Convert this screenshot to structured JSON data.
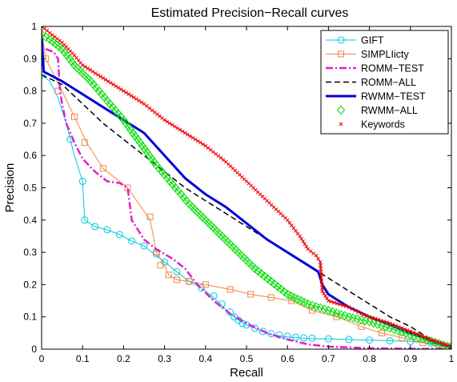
{
  "chart_data": {
    "type": "line",
    "title": "Estimated Precision−Recall curves",
    "xlabel": "Recall",
    "ylabel": "Precision",
    "xlim": [
      0,
      1
    ],
    "ylim": [
      0,
      1
    ],
    "xticks": [
      0,
      0.1,
      0.2,
      0.3,
      0.4,
      0.5,
      0.6,
      0.7,
      0.8,
      0.9,
      1
    ],
    "yticks": [
      0,
      0.1,
      0.2,
      0.3,
      0.4,
      0.5,
      0.6,
      0.7,
      0.8,
      0.9,
      1
    ],
    "xtick_labels": [
      "0",
      "0.1",
      "0.2",
      "0.3",
      "0.4",
      "0.5",
      "0.6",
      "0.7",
      "0.8",
      "0.9",
      "1"
    ],
    "ytick_labels": [
      "0",
      "0.1",
      "0.2",
      "0.3",
      "0.4",
      "0.5",
      "0.6",
      "0.7",
      "0.8",
      "0.9",
      "1"
    ],
    "grid": false,
    "legend_position": "top-right",
    "series": [
      {
        "name": "GIFT",
        "color": "#00c8e0",
        "style": "solid",
        "width": 1,
        "marker": "circle",
        "points": [
          [
            0,
            0.85
          ],
          [
            0.02,
            0.83
          ],
          [
            0.04,
            0.78
          ],
          [
            0.06,
            0.7
          ],
          [
            0.07,
            0.65
          ],
          [
            0.08,
            0.6
          ],
          [
            0.1,
            0.52
          ],
          [
            0.105,
            0.4
          ],
          [
            0.13,
            0.38
          ],
          [
            0.16,
            0.37
          ],
          [
            0.19,
            0.355
          ],
          [
            0.22,
            0.335
          ],
          [
            0.25,
            0.32
          ],
          [
            0.27,
            0.3
          ],
          [
            0.3,
            0.27
          ],
          [
            0.33,
            0.24
          ],
          [
            0.36,
            0.21
          ],
          [
            0.39,
            0.19
          ],
          [
            0.42,
            0.16
          ],
          [
            0.44,
            0.135
          ],
          [
            0.46,
            0.11
          ],
          [
            0.48,
            0.09
          ],
          [
            0.5,
            0.075
          ],
          [
            0.53,
            0.06
          ],
          [
            0.56,
            0.045
          ],
          [
            0.6,
            0.038
          ],
          [
            0.65,
            0.033
          ],
          [
            0.7,
            0.032
          ],
          [
            0.75,
            0.03
          ],
          [
            0.8,
            0.028
          ],
          [
            0.85,
            0.026
          ],
          [
            0.9,
            0.024
          ],
          [
            0.95,
            0.018
          ],
          [
            1.0,
            0.01
          ]
        ],
        "marker_points": [
          [
            0,
            0.85
          ],
          [
            0.07,
            0.65
          ],
          [
            0.1,
            0.52
          ],
          [
            0.105,
            0.4
          ],
          [
            0.13,
            0.38
          ],
          [
            0.16,
            0.37
          ],
          [
            0.19,
            0.355
          ],
          [
            0.22,
            0.335
          ],
          [
            0.25,
            0.32
          ],
          [
            0.28,
            0.295
          ],
          [
            0.3,
            0.27
          ],
          [
            0.33,
            0.24
          ],
          [
            0.36,
            0.21
          ],
          [
            0.39,
            0.19
          ],
          [
            0.42,
            0.165
          ],
          [
            0.44,
            0.14
          ],
          [
            0.46,
            0.115
          ],
          [
            0.47,
            0.1
          ],
          [
            0.48,
            0.09
          ],
          [
            0.49,
            0.08
          ],
          [
            0.5,
            0.075
          ],
          [
            0.52,
            0.065
          ],
          [
            0.54,
            0.055
          ],
          [
            0.56,
            0.048
          ],
          [
            0.58,
            0.044
          ],
          [
            0.6,
            0.04
          ],
          [
            0.62,
            0.037
          ],
          [
            0.64,
            0.035
          ],
          [
            0.66,
            0.034
          ],
          [
            0.7,
            0.032
          ],
          [
            0.75,
            0.03
          ],
          [
            0.8,
            0.028
          ],
          [
            0.85,
            0.026
          ],
          [
            0.9,
            0.024
          ],
          [
            0.95,
            0.018
          ],
          [
            1.0,
            0.01
          ]
        ]
      },
      {
        "name": "SIMPLIicty",
        "color": "#ee8844",
        "style": "solid",
        "width": 1,
        "marker": "square",
        "points": [
          [
            0,
            0.99
          ],
          [
            0.01,
            0.9
          ],
          [
            0.05,
            0.8
          ],
          [
            0.08,
            0.72
          ],
          [
            0.11,
            0.64
          ],
          [
            0.15,
            0.56
          ],
          [
            0.21,
            0.5
          ],
          [
            0.265,
            0.4
          ],
          [
            0.28,
            0.3
          ],
          [
            0.3,
            0.26
          ],
          [
            0.31,
            0.23
          ],
          [
            0.33,
            0.215
          ],
          [
            0.36,
            0.21
          ],
          [
            0.4,
            0.2
          ],
          [
            0.42,
            0.195
          ],
          [
            0.46,
            0.185
          ],
          [
            0.51,
            0.17
          ],
          [
            0.56,
            0.16
          ],
          [
            0.61,
            0.15
          ],
          [
            0.66,
            0.12
          ],
          [
            0.72,
            0.1
          ],
          [
            0.78,
            0.07
          ],
          [
            0.83,
            0.05
          ],
          [
            0.88,
            0.035
          ],
          [
            0.93,
            0.02
          ],
          [
            0.97,
            0.01
          ],
          [
            1.0,
            0.005
          ]
        ],
        "marker_points": [
          [
            0.01,
            0.9
          ],
          [
            0.04,
            0.8
          ],
          [
            0.08,
            0.72
          ],
          [
            0.105,
            0.64
          ],
          [
            0.15,
            0.56
          ],
          [
            0.21,
            0.5
          ],
          [
            0.265,
            0.41
          ],
          [
            0.28,
            0.3
          ],
          [
            0.29,
            0.26
          ],
          [
            0.31,
            0.23
          ],
          [
            0.33,
            0.215
          ],
          [
            0.36,
            0.21
          ],
          [
            0.4,
            0.2
          ],
          [
            0.46,
            0.185
          ],
          [
            0.51,
            0.17
          ],
          [
            0.56,
            0.16
          ],
          [
            0.61,
            0.15
          ],
          [
            0.66,
            0.12
          ],
          [
            0.72,
            0.1
          ],
          [
            0.78,
            0.07
          ],
          [
            0.83,
            0.05
          ],
          [
            0.88,
            0.035
          ],
          [
            0.93,
            0.02
          ],
          [
            0.97,
            0.012
          ]
        ]
      },
      {
        "name": "ROMM−TEST",
        "color": "#e020d0",
        "style": "dashdot",
        "width": 2.5,
        "marker": "none",
        "points": [
          [
            0.01,
            0.93
          ],
          [
            0.03,
            0.92
          ],
          [
            0.04,
            0.9
          ],
          [
            0.045,
            0.8
          ],
          [
            0.05,
            0.76
          ],
          [
            0.06,
            0.7
          ],
          [
            0.08,
            0.64
          ],
          [
            0.1,
            0.59
          ],
          [
            0.13,
            0.55
          ],
          [
            0.16,
            0.52
          ],
          [
            0.19,
            0.515
          ],
          [
            0.21,
            0.5
          ],
          [
            0.22,
            0.4
          ],
          [
            0.25,
            0.34
          ],
          [
            0.28,
            0.31
          ],
          [
            0.32,
            0.28
          ],
          [
            0.35,
            0.25
          ],
          [
            0.38,
            0.2
          ],
          [
            0.42,
            0.15
          ],
          [
            0.46,
            0.11
          ],
          [
            0.5,
            0.08
          ],
          [
            0.55,
            0.05
          ],
          [
            0.6,
            0.03
          ],
          [
            0.65,
            0.015
          ],
          [
            0.7,
            0.008
          ],
          [
            0.8,
            0.003
          ],
          [
            0.9,
            0.0015
          ],
          [
            1.0,
            0.001
          ]
        ]
      },
      {
        "name": "ROMM−ALL",
        "color": "#000000",
        "style": "dashed",
        "width": 1.5,
        "marker": "none",
        "points": [
          [
            0,
            0.85
          ],
          [
            0.05,
            0.82
          ],
          [
            0.1,
            0.76
          ],
          [
            0.15,
            0.7
          ],
          [
            0.2,
            0.65
          ],
          [
            0.25,
            0.6
          ],
          [
            0.3,
            0.55
          ],
          [
            0.35,
            0.5
          ],
          [
            0.4,
            0.46
          ],
          [
            0.45,
            0.42
          ],
          [
            0.5,
            0.38
          ],
          [
            0.55,
            0.34
          ],
          [
            0.6,
            0.3
          ],
          [
            0.65,
            0.26
          ],
          [
            0.7,
            0.22
          ],
          [
            0.75,
            0.18
          ],
          [
            0.8,
            0.14
          ],
          [
            0.85,
            0.1
          ],
          [
            0.9,
            0.07
          ],
          [
            0.95,
            0.03
          ],
          [
            1.0,
            0.0
          ]
        ]
      },
      {
        "name": "RWMM−TEST",
        "color": "#0000e0",
        "style": "solid",
        "width": 3,
        "marker": "none",
        "points": [
          [
            0,
            0.97
          ],
          [
            0.005,
            0.86
          ],
          [
            0.05,
            0.83
          ],
          [
            0.1,
            0.79
          ],
          [
            0.15,
            0.75
          ],
          [
            0.2,
            0.71
          ],
          [
            0.25,
            0.67
          ],
          [
            0.3,
            0.6
          ],
          [
            0.35,
            0.53
          ],
          [
            0.4,
            0.48
          ],
          [
            0.45,
            0.44
          ],
          [
            0.5,
            0.39
          ],
          [
            0.55,
            0.34
          ],
          [
            0.6,
            0.3
          ],
          [
            0.65,
            0.26
          ],
          [
            0.675,
            0.24
          ],
          [
            0.685,
            0.2
          ],
          [
            0.7,
            0.17
          ],
          [
            0.75,
            0.13
          ],
          [
            0.8,
            0.1
          ],
          [
            0.85,
            0.075
          ],
          [
            0.9,
            0.05
          ],
          [
            0.95,
            0.025
          ],
          [
            1.0,
            0.005
          ]
        ]
      },
      {
        "name": "RWMM−ALL",
        "color": "#00dd00",
        "style": "solid",
        "width": 1,
        "marker": "diamond",
        "points": [
          [
            0,
            0.975
          ],
          [
            0.02,
            0.96
          ],
          [
            0.05,
            0.93
          ],
          [
            0.08,
            0.88
          ],
          [
            0.12,
            0.83
          ],
          [
            0.16,
            0.77
          ],
          [
            0.2,
            0.71
          ],
          [
            0.24,
            0.64
          ],
          [
            0.28,
            0.57
          ],
          [
            0.32,
            0.51
          ],
          [
            0.36,
            0.45
          ],
          [
            0.4,
            0.4
          ],
          [
            0.44,
            0.35
          ],
          [
            0.48,
            0.3
          ],
          [
            0.52,
            0.25
          ],
          [
            0.56,
            0.21
          ],
          [
            0.6,
            0.17
          ],
          [
            0.65,
            0.14
          ],
          [
            0.7,
            0.12
          ],
          [
            0.75,
            0.1
          ],
          [
            0.8,
            0.085
          ],
          [
            0.85,
            0.065
          ],
          [
            0.9,
            0.045
          ],
          [
            0.95,
            0.025
          ],
          [
            1.0,
            0.005
          ]
        ]
      },
      {
        "name": "Keywords",
        "color": "#ee0000",
        "style": "solid",
        "width": 1,
        "marker": "x",
        "points": [
          [
            0,
            1.0
          ],
          [
            0.02,
            0.98
          ],
          [
            0.05,
            0.95
          ],
          [
            0.08,
            0.91
          ],
          [
            0.1,
            0.88
          ],
          [
            0.15,
            0.84
          ],
          [
            0.2,
            0.8
          ],
          [
            0.25,
            0.76
          ],
          [
            0.27,
            0.74
          ],
          [
            0.3,
            0.71
          ],
          [
            0.35,
            0.67
          ],
          [
            0.4,
            0.63
          ],
          [
            0.45,
            0.58
          ],
          [
            0.5,
            0.52
          ],
          [
            0.55,
            0.46
          ],
          [
            0.6,
            0.4
          ],
          [
            0.63,
            0.35
          ],
          [
            0.65,
            0.31
          ],
          [
            0.67,
            0.29
          ],
          [
            0.68,
            0.27
          ],
          [
            0.685,
            0.18
          ],
          [
            0.7,
            0.15
          ],
          [
            0.75,
            0.13
          ],
          [
            0.78,
            0.11
          ],
          [
            0.8,
            0.1
          ],
          [
            0.85,
            0.08
          ],
          [
            0.9,
            0.055
          ],
          [
            0.95,
            0.03
          ],
          [
            1.0,
            0.008
          ]
        ]
      }
    ]
  }
}
